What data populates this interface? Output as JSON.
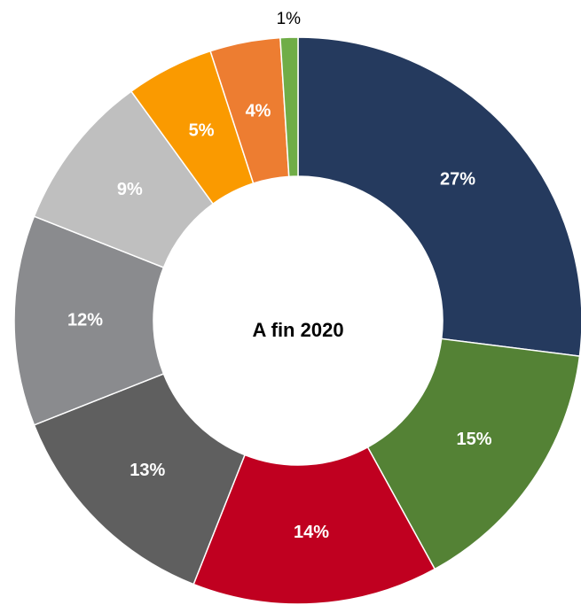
{
  "chart_data": {
    "type": "donut",
    "title": "A fin 2020",
    "values": [
      27,
      15,
      14,
      13,
      12,
      9,
      5,
      4,
      1
    ],
    "value_labels": [
      "27%",
      "15%",
      "14%",
      "13%",
      "12%",
      "9%",
      "5%",
      "4%",
      "1%"
    ],
    "colors": [
      "#253a5e",
      "#548235",
      "#c00020",
      "#5f5f5f",
      "#8a8b8e",
      "#bfbfbf",
      "#fa9a00",
      "#ed7d31",
      "#70ad47"
    ]
  }
}
